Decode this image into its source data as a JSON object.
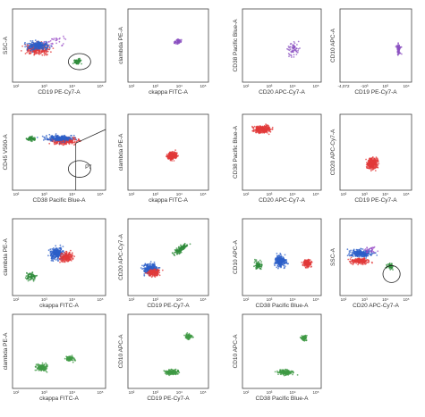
{
  "chart_data": [
    {
      "type": "scatter",
      "panel": "r1c1",
      "xlabel": "CD19 PE-Cy7-A",
      "ylabel": "SSC-A",
      "xscale": "log",
      "xticks": [
        "10²",
        "10³",
        "10⁴",
        "10⁵"
      ],
      "yticks": [],
      "series": [
        {
          "color": "#e23a3a",
          "cloud": "horizontal band across left half"
        },
        {
          "color": "#2c5fc8",
          "cloud": "horizontal band across left half"
        },
        {
          "color": "#2e8b3a",
          "cloud": "small cluster at right near gate"
        },
        {
          "color": "#9c52c8",
          "cloud": "sparse"
        }
      ],
      "gates": 1
    },
    {
      "type": "scatter",
      "panel": "r1c2",
      "xlabel": "ckappa FITC-A",
      "ylabel": "clambda PE-A",
      "xscale": "log",
      "xticks": [
        "10²",
        "10³",
        "10⁴",
        "10⁵"
      ],
      "series": [
        {
          "color": "#8a4fc0",
          "cloud": "small cluster mid-right, diagonal"
        }
      ]
    },
    {
      "type": "scatter",
      "panel": "r1c3",
      "xlabel": "CD20 APC-Cy7-A",
      "ylabel": "CD38 Pacific Blue-A",
      "xscale": "log",
      "xticks": [
        "10²",
        "10³",
        "10⁴",
        "10⁵"
      ],
      "series": [
        {
          "color": "#8a4fc0",
          "cloud": "sparse, top and right"
        }
      ]
    },
    {
      "type": "scatter",
      "panel": "r1c4",
      "xlabel": "CD19 PE-Cy7-A",
      "ylabel": "CD10 APC-A",
      "xticks": [
        "-4,072",
        "-10³",
        "10³",
        "10⁴"
      ],
      "series": [
        {
          "color": "#8a4fc0",
          "cloud": "vertical streak right"
        }
      ]
    },
    {
      "type": "scatter",
      "panel": "r2c1",
      "xlabel": "CD38 Pacific Blue-A",
      "ylabel": "CD45 V500-A",
      "xscale": "log",
      "xticks": [
        "10²",
        "10³",
        "10⁴",
        "10⁵"
      ],
      "series": [
        {
          "color": "#e23a3a",
          "cloud": "broad horizontal"
        },
        {
          "color": "#2c5fc8",
          "cloud": "broad horizontal"
        },
        {
          "color": "#2e8b3a",
          "cloud": "left cluster"
        }
      ],
      "gates": [
        "P7"
      ]
    },
    {
      "type": "scatter",
      "panel": "r2c2",
      "xlabel": "ckappa FITC-A",
      "ylabel": "clambda PE-A",
      "xscale": "log",
      "xticks": [
        "10²",
        "10³",
        "10⁴",
        "10⁵"
      ],
      "series": [
        {
          "color": "#e23a3a",
          "cloud": "dense center cluster"
        }
      ]
    },
    {
      "type": "scatter",
      "panel": "r2c3",
      "xlabel": "CD20 APC-Cy7-A",
      "ylabel": "CD38 Pacific Blue-A",
      "xscale": "log",
      "xticks": [
        "10²",
        "10³",
        "10⁴",
        "10⁵"
      ],
      "series": [
        {
          "color": "#e23a3a",
          "cloud": "top-left band"
        }
      ]
    },
    {
      "type": "scatter",
      "panel": "r2c4",
      "xlabel": "CD19 PE-Cy7-A",
      "ylabel": "CD20 APC-Cy7-A",
      "xscale": "log",
      "xticks": [
        "10²",
        "10³",
        "10⁴",
        "10⁵"
      ],
      "series": [
        {
          "color": "#e23a3a",
          "cloud": "lower-middle cluster"
        }
      ]
    },
    {
      "type": "scatter",
      "panel": "r3c1",
      "xlabel": "ckappa FITC-A",
      "ylabel": "clambda PE-A",
      "xscale": "log",
      "xticks": [
        "10²",
        "10³",
        "10⁴",
        "10⁵"
      ],
      "series": [
        {
          "color": "#2c5fc8",
          "cloud": "diagonal"
        },
        {
          "color": "#e23a3a",
          "cloud": "diagonal"
        },
        {
          "color": "#2e8b3a",
          "cloud": "lower left"
        }
      ]
    },
    {
      "type": "scatter",
      "panel": "r3c2",
      "xlabel": "CD19 PE-Cy7-A",
      "ylabel": "CD20 APC-Cy7-A",
      "xscale": "log",
      "xticks": [
        "10²",
        "10³",
        "10⁴",
        "10⁵"
      ],
      "series": [
        {
          "color": "#2c5fc8",
          "cloud": "lower-left"
        },
        {
          "color": "#e23a3a",
          "cloud": "lower-left"
        },
        {
          "color": "#2e8b3a",
          "cloud": "diagonal upper right"
        }
      ]
    },
    {
      "type": "scatter",
      "panel": "r3c3",
      "xlabel": "CD38 Pacific Blue-A",
      "ylabel": "CD10 APC-A",
      "xscale": "log",
      "xticks": [
        "10²",
        "10³",
        "10⁴",
        "10⁵"
      ],
      "series": [
        {
          "color": "#2c5fc8",
          "cloud": "center"
        },
        {
          "color": "#e23a3a",
          "cloud": "right"
        },
        {
          "color": "#2e8b3a",
          "cloud": "left"
        }
      ]
    },
    {
      "type": "scatter",
      "panel": "r4c1",
      "xlabel": "CD20 APC-Cy7-A",
      "ylabel": "SSC-A",
      "xscale": "log",
      "xticks": [
        "10²",
        "10³",
        "10⁴",
        "10⁵"
      ],
      "series": [
        {
          "color": "#2c5fc8",
          "cloud": "horizontal band"
        },
        {
          "color": "#e23a3a",
          "cloud": "horizontal band"
        },
        {
          "color": "#2e8b3a",
          "cloud": "right near gate"
        }
      ],
      "gates": 1
    },
    {
      "type": "scatter",
      "panel": "r4c2",
      "xlabel": "ckappa FITC-A",
      "ylabel": "clambda PE-A",
      "xscale": "log",
      "xticks": [
        "10²",
        "10³",
        "10⁴",
        "10⁵"
      ],
      "series": [
        {
          "color": "#3f9a44",
          "cloud": "two clusters lower"
        }
      ]
    },
    {
      "type": "scatter",
      "panel": "r4c3",
      "xlabel": "CD19 PE-Cy7-A",
      "ylabel": "CD10 APC-A",
      "xscale": "log",
      "xticks": [
        "10²",
        "10³",
        "10⁴",
        "10⁵"
      ],
      "series": [
        {
          "color": "#3f9a44",
          "cloud": "upper-right and lower clusters"
        }
      ]
    },
    {
      "type": "scatter",
      "panel": "r4c4",
      "xlabel": "CD38 Pacific Blue-A",
      "ylabel": "CD10 APC-A",
      "xscale": "log",
      "xticks": [
        "10²",
        "10³",
        "10⁴",
        "10⁵"
      ],
      "series": [
        {
          "color": "#3f9a44",
          "cloud": "upper-right and lower clusters"
        }
      ]
    }
  ],
  "gate_label": "P7"
}
